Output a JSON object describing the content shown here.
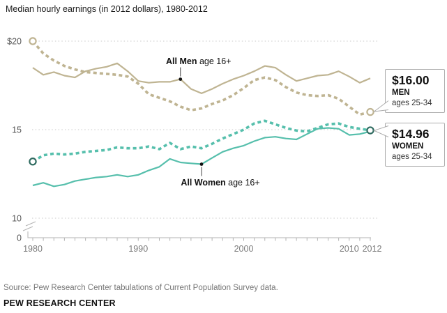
{
  "footer": {
    "source": "Source: Pew Research Center tabulations of Current Population Survey data.",
    "brand": "PEW RESEARCH CENTER"
  },
  "chart_data": {
    "type": "line",
    "title": "Median hourly earnings (in 2012 dollars), 1980-2012",
    "x": [
      1980,
      1981,
      1982,
      1983,
      1984,
      1985,
      1986,
      1987,
      1988,
      1989,
      1990,
      1991,
      1992,
      1993,
      1994,
      1995,
      1996,
      1997,
      1998,
      1999,
      2000,
      2001,
      2002,
      2003,
      2004,
      2005,
      2006,
      2007,
      2008,
      2009,
      2010,
      2011,
      2012
    ],
    "x_axis": {
      "labeled_years": [
        1980,
        1990,
        2000,
        2010,
        2012
      ],
      "range": [
        1980,
        2012
      ]
    },
    "y_axis": {
      "gridline_values": [
        20,
        15,
        10
      ],
      "ticks": [
        {
          "label": "$20",
          "value": 20
        },
        {
          "label": "15",
          "value": 15
        },
        {
          "label": "10",
          "value": 10
        },
        {
          "label": "0",
          "value": 0
        }
      ],
      "axis_break": true,
      "unit": "dollars per hour"
    },
    "grid": "dotted",
    "legend_position": "none",
    "colors": {
      "men": "#bfb492",
      "women": "#56bfac",
      "women_marker": "#2f6b60",
      "gridline": "#c9c9c9",
      "axis": "#b3b3b3"
    },
    "series": [
      {
        "key": "all_men",
        "name": "All Men age 16+",
        "style": "solid",
        "color": "#bfb492",
        "end_markers": false,
        "values": [
          18.5,
          18.1,
          18.25,
          18.05,
          17.95,
          18.3,
          18.45,
          18.55,
          18.75,
          18.3,
          17.75,
          17.65,
          17.7,
          17.7,
          17.85,
          17.3,
          17.05,
          17.3,
          17.6,
          17.85,
          18.05,
          18.3,
          18.6,
          18.5,
          18.1,
          17.75,
          17.9,
          18.05,
          18.1,
          18.3,
          18.0,
          17.65,
          17.9
        ]
      },
      {
        "key": "men_25_34",
        "name": "Men ages 25-34",
        "style": "dashed",
        "color": "#bfb492",
        "marker_color": "#bfb492",
        "end_markers": true,
        "values": [
          20.0,
          19.3,
          18.9,
          18.6,
          18.4,
          18.25,
          18.2,
          18.15,
          18.1,
          18.0,
          17.6,
          17.0,
          16.8,
          16.6,
          16.3,
          16.1,
          16.2,
          16.45,
          16.65,
          16.95,
          17.35,
          17.8,
          17.95,
          17.8,
          17.4,
          17.1,
          16.95,
          16.9,
          16.95,
          16.75,
          16.3,
          15.85,
          16.0
        ]
      },
      {
        "key": "all_women",
        "name": "All Women age 16+",
        "style": "solid",
        "color": "#56bfac",
        "end_markers": false,
        "values": [
          11.85,
          12.0,
          11.8,
          11.9,
          12.1,
          12.2,
          12.3,
          12.35,
          12.45,
          12.35,
          12.45,
          12.7,
          12.9,
          13.35,
          13.15,
          13.1,
          13.05,
          13.4,
          13.75,
          13.95,
          14.1,
          14.35,
          14.55,
          14.6,
          14.5,
          14.45,
          14.75,
          15.05,
          15.1,
          15.05,
          14.7,
          14.75,
          14.9
        ]
      },
      {
        "key": "women_25_34",
        "name": "Women ages 25-34",
        "style": "dashed",
        "color": "#56bfac",
        "marker_color": "#2f6b60",
        "end_markers": true,
        "values": [
          13.2,
          13.55,
          13.65,
          13.6,
          13.65,
          13.75,
          13.8,
          13.85,
          14.0,
          13.95,
          13.95,
          14.05,
          13.9,
          14.25,
          13.9,
          14.05,
          13.95,
          14.2,
          14.5,
          14.75,
          15.0,
          15.35,
          15.5,
          15.3,
          15.1,
          14.95,
          14.9,
          15.1,
          15.3,
          15.35,
          15.15,
          15.05,
          14.96
        ]
      }
    ],
    "annotations": [
      {
        "text_bold": "All Men",
        "text_rest": " age 16+",
        "year": 1994,
        "series": "all_men",
        "position": "above",
        "label_dx": 26
      },
      {
        "text_bold": "All Women",
        "text_rest": " age 16+",
        "year": 1996,
        "series": "all_women",
        "position": "below",
        "label_dx": 27
      }
    ],
    "callouts": [
      {
        "value": "$16.00",
        "group": "MEN",
        "ages": "ages 25-34"
      },
      {
        "value": "$14.96",
        "group": "WOMEN",
        "ages": "ages 25-34"
      }
    ]
  }
}
